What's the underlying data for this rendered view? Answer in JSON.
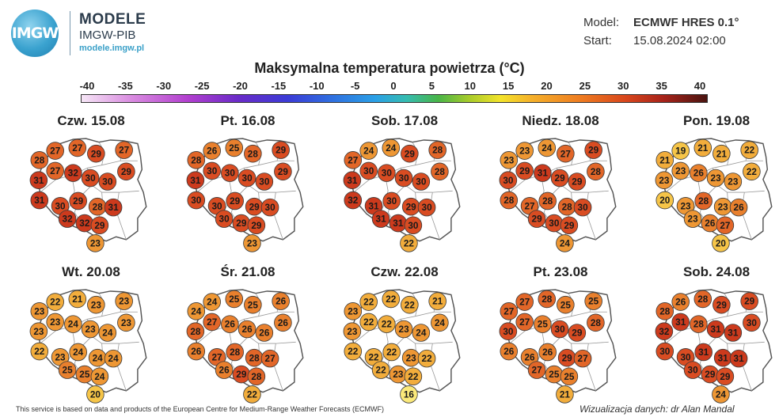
{
  "header": {
    "logo_text": "IMGW",
    "brand_line1": "MODELE",
    "brand_line2": "IMGW-PIB",
    "brand_url": "modele.imgw.pl",
    "model_label": "Model:",
    "model_value": "ECMWF HRES 0.1°",
    "start_label": "Start:",
    "start_value": "15.08.2024 02:00",
    "title": "Maksymalna temperatura powietrza (°C)"
  },
  "scale": {
    "ticks": [
      "-40",
      "-35",
      "-30",
      "-25",
      "-20",
      "-15",
      "-10",
      "-5",
      "0",
      "5",
      "10",
      "15",
      "20",
      "25",
      "30",
      "35",
      "40"
    ],
    "min": -40,
    "max": 40
  },
  "palette": {
    "outline": "#555555",
    "voivodeship_border": "#9a9a9a"
  },
  "panels": [
    {
      "date": "Czw. 15.08",
      "values": [
        28,
        27,
        27,
        29,
        27,
        29,
        31,
        27,
        32,
        30,
        30,
        31,
        30,
        29,
        28,
        31,
        32,
        32,
        29,
        23
      ]
    },
    {
      "date": "Pt. 16.08",
      "values": [
        28,
        26,
        25,
        28,
        29,
        29,
        31,
        30,
        30,
        30,
        30,
        30,
        30,
        29,
        29,
        30,
        30,
        29,
        29,
        23
      ]
    },
    {
      "date": "Sob. 17.08",
      "values": [
        27,
        24,
        24,
        29,
        28,
        28,
        31,
        30,
        30,
        30,
        30,
        32,
        31,
        30,
        29,
        30,
        31,
        31,
        30,
        22
      ]
    },
    {
      "date": "Niedz. 18.08",
      "values": [
        23,
        23,
        24,
        27,
        29,
        28,
        30,
        29,
        31,
        29,
        29,
        28,
        27,
        28,
        28,
        30,
        29,
        30,
        29,
        24
      ]
    },
    {
      "date": "Pon. 19.08",
      "values": [
        21,
        19,
        21,
        21,
        22,
        22,
        23,
        23,
        26,
        23,
        23,
        20,
        23,
        28,
        23,
        26,
        23,
        26,
        27,
        20
      ]
    },
    {
      "date": "Wt. 20.08",
      "values": [
        23,
        22,
        21,
        23,
        23,
        23,
        23,
        23,
        24,
        23,
        24,
        22,
        23,
        24,
        24,
        24,
        25,
        25,
        24,
        20
      ]
    },
    {
      "date": "Śr. 21.08",
      "values": [
        24,
        24,
        25,
        25,
        26,
        26,
        28,
        27,
        26,
        26,
        26,
        26,
        27,
        28,
        28,
        27,
        26,
        29,
        28,
        22
      ]
    },
    {
      "date": "Czw. 22.08",
      "values": [
        23,
        22,
        22,
        22,
        21,
        24,
        23,
        22,
        22,
        23,
        24,
        22,
        22,
        22,
        23,
        22,
        22,
        23,
        22,
        16
      ]
    },
    {
      "date": "Pt. 23.08",
      "values": [
        27,
        27,
        28,
        25,
        25,
        28,
        30,
        27,
        25,
        30,
        29,
        26,
        26,
        26,
        29,
        27,
        27,
        25,
        25,
        21
      ]
    },
    {
      "date": "Sob. 24.08",
      "values": [
        28,
        26,
        28,
        29,
        29,
        30,
        32,
        31,
        28,
        31,
        31,
        30,
        30,
        31,
        31,
        31,
        30,
        29,
        29,
        24
      ]
    }
  ],
  "footer": {
    "left": "This service is based on data and products of the European Centre for Medium-Range Weather Forecasts (ECMWF)",
    "right": "Wizualizacja danych: dr Alan Mandal"
  }
}
